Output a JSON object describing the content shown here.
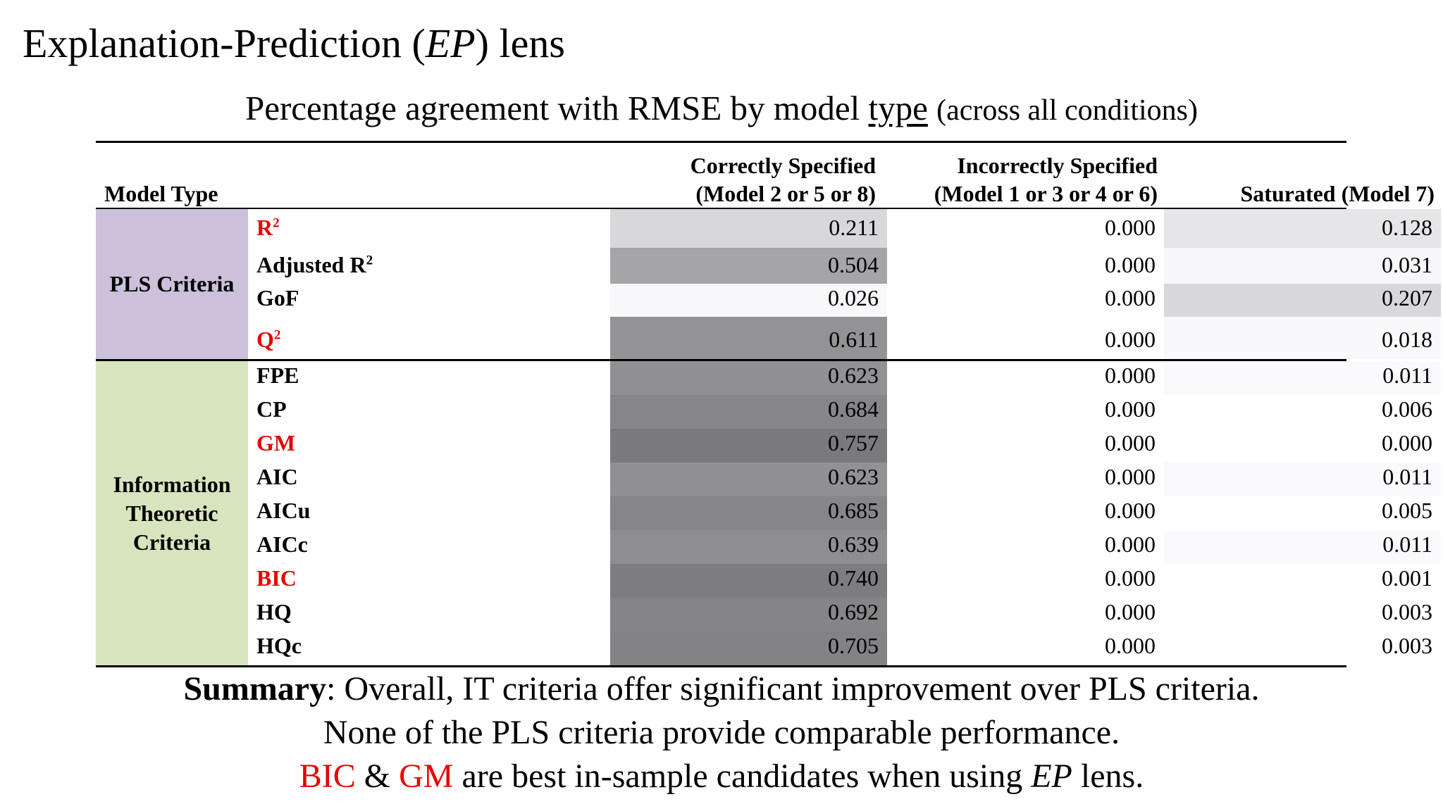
{
  "title": {
    "prefix": "Explanation-Prediction (",
    "italic": "EP",
    "suffix": ") lens"
  },
  "subtitle": {
    "main": "Percentage agreement with RMSE by model ",
    "underlined": "type",
    "small": "(across all conditions)"
  },
  "table": {
    "header": {
      "model_type": "Model Type",
      "col1_line1": "Correctly Specified",
      "col1_line2": "(Model 2 or 5 or 8)",
      "col2_line1": "Incorrectly Specified",
      "col2_line2": "(Model 1 or 3 or 4 or 6)",
      "col3": "Saturated (Model 7)"
    },
    "groups": {
      "pls": "PLS Criteria",
      "it_line1": "Information",
      "it_line2": "Theoretic",
      "it_line3": "Criteria"
    },
    "rows": [
      {
        "label": "R",
        "sup": "2",
        "c1": "0.211",
        "c2": "0.000",
        "c3": "0.128",
        "highlight": true
      },
      {
        "label": "Adjusted R",
        "sup": "2",
        "c1": "0.504",
        "c2": "0.000",
        "c3": "0.031",
        "highlight": false
      },
      {
        "label": "GoF",
        "sup": "",
        "c1": "0.026",
        "c2": "0.000",
        "c3": "0.207",
        "highlight": false
      },
      {
        "label": "Q",
        "sup": "2",
        "c1": "0.611",
        "c2": "0.000",
        "c3": "0.018",
        "highlight": true
      },
      {
        "label": "FPE",
        "sup": "",
        "c1": "0.623",
        "c2": "0.000",
        "c3": "0.011",
        "highlight": false
      },
      {
        "label": "CP",
        "sup": "",
        "c1": "0.684",
        "c2": "0.000",
        "c3": "0.006",
        "highlight": false
      },
      {
        "label": "GM",
        "sup": "",
        "c1": "0.757",
        "c2": "0.000",
        "c3": "0.000",
        "highlight": true
      },
      {
        "label": "AIC",
        "sup": "",
        "c1": "0.623",
        "c2": "0.000",
        "c3": "0.011",
        "highlight": false
      },
      {
        "label": "AICu",
        "sup": "",
        "c1": "0.685",
        "c2": "0.000",
        "c3": "0.005",
        "highlight": false
      },
      {
        "label": "AICc",
        "sup": "",
        "c1": "0.639",
        "c2": "0.000",
        "c3": "0.011",
        "highlight": false
      },
      {
        "label": "BIC",
        "sup": "",
        "c1": "0.740",
        "c2": "0.000",
        "c3": "0.001",
        "highlight": true
      },
      {
        "label": "HQ",
        "sup": "",
        "c1": "0.692",
        "c2": "0.000",
        "c3": "0.003",
        "highlight": false
      },
      {
        "label": "HQc",
        "sup": "",
        "c1": "0.705",
        "c2": "0.000",
        "c3": "0.003",
        "highlight": false
      }
    ]
  },
  "summary": {
    "line1_bold": "Summary",
    "line1_rest": ": Overall, IT criteria offer significant improvement over PLS criteria.",
    "line2": "None of the PLS criteria provide comparable performance.",
    "line3_red1": "BIC",
    "line3_amp": " & ",
    "line3_red2": "GM",
    "line3_mid": " are best in-sample candidates when using ",
    "line3_italic": "EP",
    "line3_end": " lens."
  },
  "colors": {
    "highlight_red": "#e60000",
    "pls_bg": "#ccc0da",
    "it_bg": "#d7e4bd"
  }
}
